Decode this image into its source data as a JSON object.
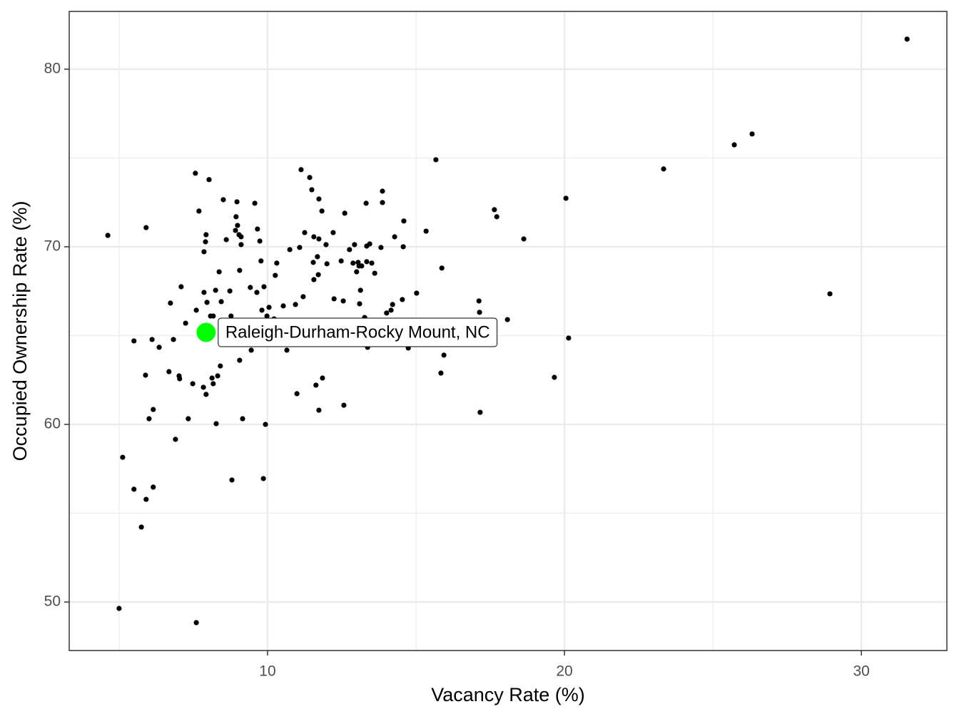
{
  "chart_data": {
    "type": "scatter",
    "x_label": "Vacancy Rate (%)",
    "y_label": "Occupied Ownership Rate (%)",
    "xlim": [
      3.32,
      32.88
    ],
    "ylim": [
      47.27,
      83.25
    ],
    "xticks": [
      10,
      20,
      30
    ],
    "yticks": [
      50,
      60,
      70,
      80
    ],
    "x_minor_grid": [
      5,
      15,
      25
    ],
    "y_minor_grid": [
      55,
      65,
      75
    ],
    "grid": true,
    "series": [
      {
        "color": "#000000",
        "x": [
          4.62,
          5.0,
          5.12,
          5.5,
          5.5,
          5.75,
          5.91,
          5.89,
          5.91,
          6.01,
          6.11,
          6.15,
          6.15,
          6.35,
          6.73,
          6.68,
          6.83,
          6.9,
          7.02,
          7.04,
          7.09,
          7.24,
          7.33,
          7.48,
          7.57,
          7.6,
          7.6,
          7.69,
          7.84,
          7.86,
          7.86,
          7.91,
          7.93,
          7.93,
          7.96,
          8.03,
          8.08,
          8.13,
          8.17,
          8.17,
          8.25,
          8.27,
          8.32,
          8.37,
          8.41,
          8.44,
          8.51,
          8.61,
          8.73,
          8.77,
          8.8,
          8.92,
          8.94,
          8.97,
          8.99,
          9.04,
          9.06,
          9.06,
          9.11,
          9.11,
          9.16,
          9.42,
          9.45,
          9.57,
          9.64,
          9.66,
          9.74,
          9.78,
          9.81,
          9.86,
          9.88,
          9.93,
          9.98,
          10.05,
          10.22,
          10.26,
          10.31,
          10.53,
          10.65,
          10.75,
          10.94,
          10.99,
          11.08,
          11.13,
          11.2,
          11.25,
          11.42,
          11.49,
          11.54,
          11.56,
          11.56,
          11.63,
          11.68,
          11.71,
          11.73,
          11.73,
          11.73,
          11.83,
          11.85,
          11.97,
          12.0,
          12.21,
          12.24,
          12.48,
          12.55,
          12.57,
          12.6,
          12.76,
          12.88,
          12.93,
          13.0,
          13.05,
          13.08,
          13.1,
          13.13,
          13.17,
          13.27,
          13.32,
          13.34,
          13.34,
          13.37,
          13.44,
          13.51,
          13.61,
          13.82,
          13.87,
          13.87,
          14.01,
          14.16,
          14.21,
          14.28,
          14.54,
          14.57,
          14.59,
          14.74,
          15.02,
          15.34,
          15.67,
          15.84,
          15.87,
          15.94,
          17.12,
          17.14,
          17.16,
          17.64,
          17.72,
          18.08,
          18.63,
          19.66,
          20.05,
          20.14,
          23.34,
          25.72,
          26.32,
          28.94,
          31.54
        ],
        "y": [
          70.64,
          49.64,
          58.15,
          64.7,
          56.35,
          54.22,
          71.08,
          62.77,
          55.78,
          60.32,
          64.78,
          60.84,
          56.47,
          64.34,
          66.83,
          62.97,
          64.78,
          59.16,
          62.73,
          62.57,
          67.75,
          65.7,
          60.32,
          62.29,
          74.14,
          66.43,
          48.84,
          72.01,
          62.09,
          67.43,
          69.72,
          70.28,
          70.68,
          61.69,
          66.87,
          73.78,
          66.1,
          62.61,
          66.1,
          62.29,
          67.55,
          60.04,
          62.73,
          68.59,
          63.29,
          66.91,
          72.65,
          70.4,
          67.51,
          66.1,
          56.87,
          70.92,
          71.69,
          72.53,
          71.2,
          70.68,
          63.61,
          68.67,
          70.12,
          70.56,
          60.32,
          67.71,
          64.18,
          72.45,
          67.43,
          71.0,
          70.32,
          69.2,
          66.43,
          56.95,
          67.75,
          60.0,
          66.1,
          66.59,
          65.94,
          68.39,
          69.08,
          66.67,
          64.18,
          69.84,
          66.75,
          61.73,
          69.96,
          74.34,
          67.19,
          70.8,
          73.9,
          73.21,
          69.12,
          68.15,
          70.56,
          62.21,
          69.44,
          68.43,
          72.69,
          70.44,
          60.8,
          72.01,
          62.61,
          70.12,
          69.04,
          70.8,
          67.07,
          69.2,
          66.95,
          61.08,
          71.89,
          69.84,
          69.08,
          70.12,
          68.59,
          69.12,
          68.92,
          66.79,
          67.55,
          68.92,
          66.02,
          72.45,
          69.16,
          70.04,
          64.34,
          70.16,
          69.08,
          68.51,
          69.96,
          73.13,
          72.49,
          66.27,
          66.43,
          66.75,
          70.56,
          67.03,
          70.0,
          71.45,
          64.3,
          67.39,
          70.88,
          74.9,
          62.89,
          68.8,
          63.9,
          66.95,
          66.31,
          60.68,
          72.09,
          71.69,
          65.9,
          70.44,
          62.65,
          72.73,
          64.86,
          74.38,
          75.74,
          76.35,
          67.35,
          81.69
        ]
      }
    ],
    "highlight": {
      "label": "Raleigh-Durham-Rocky Mount, NC",
      "x": 7.93,
      "y": 65.18,
      "color": "#00ff00"
    }
  }
}
